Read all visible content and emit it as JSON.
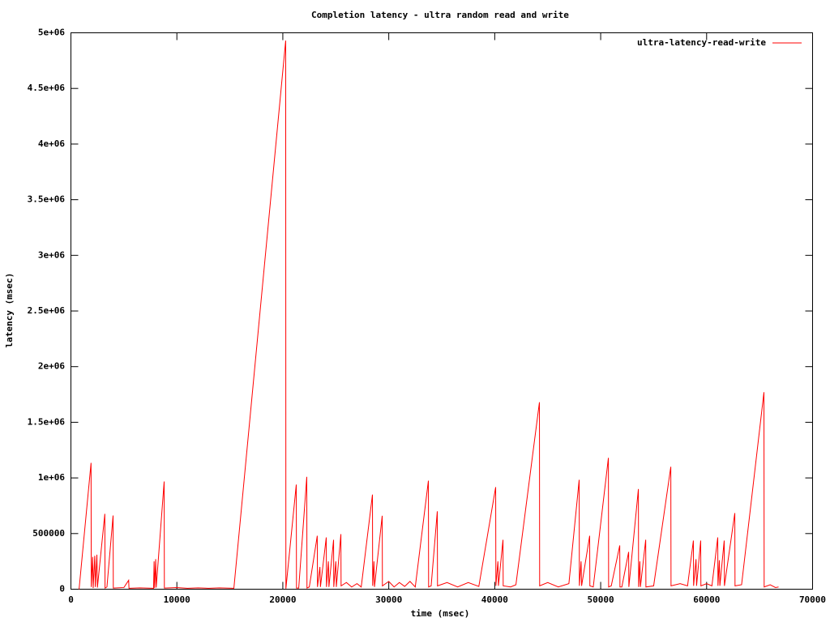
{
  "chart_data": {
    "type": "line",
    "title": "Completion latency - ultra random read and write",
    "xlabel": "time (msec)",
    "ylabel": "latency (msec)",
    "legend": "top-right",
    "xlim": [
      0,
      70000
    ],
    "ylim": [
      0,
      5000000
    ],
    "xticks": [
      0,
      10000,
      20000,
      30000,
      40000,
      50000,
      60000,
      70000
    ],
    "yticks": [
      0,
      500000,
      {
        "value": 1000000,
        "label": "1e+06"
      },
      {
        "value": 1500000,
        "label": "1.5e+06"
      },
      {
        "value": 2000000,
        "label": "2e+06"
      },
      {
        "value": 2500000,
        "label": "2.5e+06"
      },
      {
        "value": 3000000,
        "label": "3e+06"
      },
      {
        "value": 3500000,
        "label": "3.5e+06"
      },
      {
        "value": 4000000,
        "label": "4e+06"
      },
      {
        "value": 4500000,
        "label": "4.5e+06"
      },
      {
        "value": 5000000,
        "label": "5e+06"
      }
    ],
    "x": [
      770,
      1900,
      1920,
      2050,
      2100,
      2250,
      2300,
      2450,
      2500,
      3200,
      3220,
      3400,
      3980,
      4000,
      5000,
      5450,
      5480,
      6500,
      7800,
      7850,
      7900,
      8000,
      8050,
      8800,
      8820,
      10000,
      11000,
      12000,
      13000,
      14000,
      15380,
      20270,
      20290,
      21270,
      21290,
      21500,
      22260,
      22280,
      22500,
      23250,
      23270,
      23500,
      23550,
      24100,
      24120,
      24300,
      24350,
      24790,
      24810,
      25000,
      25050,
      25480,
      25500,
      26000,
      26500,
      27000,
      27400,
      28460,
      28480,
      28600,
      28650,
      29380,
      29400,
      30000,
      30500,
      31000,
      31500,
      32000,
      32500,
      33740,
      33760,
      34000,
      34580,
      34600,
      35500,
      36500,
      37500,
      38500,
      40090,
      40110,
      40300,
      40350,
      40780,
      40800,
      41500,
      42000,
      44220,
      44240,
      45000,
      46000,
      47000,
      47970,
      47990,
      48150,
      48200,
      48960,
      48980,
      49300,
      50730,
      50750,
      51000,
      51800,
      51820,
      52000,
      52640,
      52660,
      53560,
      53580,
      53700,
      53750,
      54250,
      54270,
      55000,
      56620,
      56640,
      57500,
      58200,
      58750,
      58770,
      59000,
      59050,
      59440,
      59460,
      60000,
      60500,
      61050,
      61070,
      61200,
      61250,
      61660,
      61680,
      62660,
      62680,
      63300,
      65410,
      65430,
      66000,
      66500,
      66790
    ],
    "series": [
      {
        "name": "ultra-latency-read-write",
        "color": "#ff0000",
        "values": [
          0,
          1135000,
          20000,
          290000,
          10000,
          300000,
          20000,
          310000,
          15000,
          677000,
          10000,
          20000,
          662000,
          10000,
          15000,
          80000,
          8000,
          12000,
          8000,
          250000,
          10000,
          270000,
          15000,
          968000,
          10000,
          15000,
          8000,
          12000,
          8000,
          12000,
          8000,
          4930000,
          5000,
          940000,
          10000,
          10000,
          1010000,
          10000,
          20000,
          480000,
          20000,
          200000,
          20000,
          465000,
          20000,
          250000,
          20000,
          444000,
          20000,
          250000,
          20000,
          495000,
          30000,
          60000,
          20000,
          50000,
          20000,
          850000,
          30000,
          250000,
          20000,
          660000,
          30000,
          70000,
          20000,
          60000,
          25000,
          70000,
          20000,
          975000,
          20000,
          30000,
          700000,
          30000,
          60000,
          20000,
          60000,
          25000,
          917000,
          30000,
          250000,
          30000,
          444000,
          30000,
          20000,
          40000,
          1680000,
          30000,
          60000,
          20000,
          50000,
          983000,
          30000,
          250000,
          30000,
          480000,
          30000,
          20000,
          1180000,
          20000,
          30000,
          393000,
          20000,
          20000,
          335000,
          20000,
          900000,
          20000,
          250000,
          20000,
          444000,
          20000,
          30000,
          1100000,
          30000,
          50000,
          30000,
          437000,
          30000,
          270000,
          30000,
          437000,
          30000,
          50000,
          30000,
          465000,
          30000,
          260000,
          30000,
          437000,
          30000,
          684000,
          30000,
          40000,
          1770000,
          20000,
          40000,
          15000,
          20000
        ]
      }
    ]
  }
}
